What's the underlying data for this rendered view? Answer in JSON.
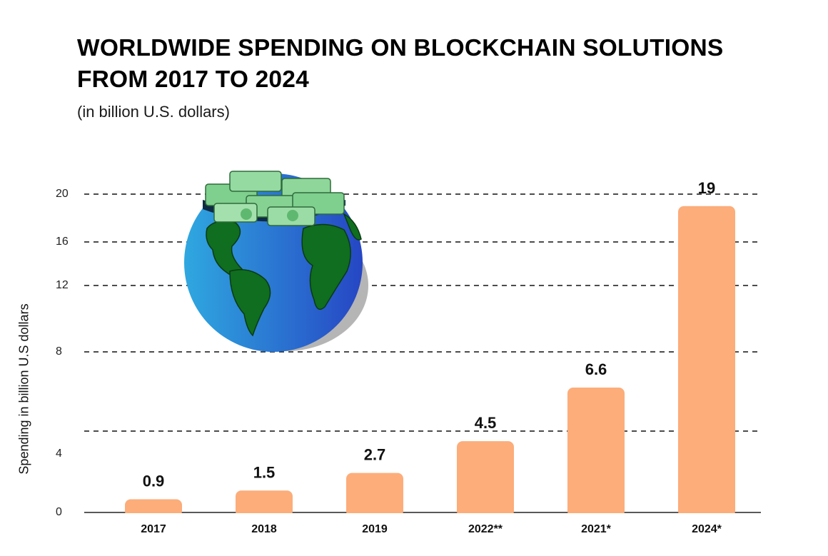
{
  "title": "WORLDWIDE SPENDING ON BLOCKCHAIN SOLUTIONS FROM 2017 TO 2024",
  "subtitle": "(in billion U.S. dollars)",
  "chart_data": {
    "type": "bar",
    "categories": [
      "2017",
      "2018",
      "2019",
      "2022**",
      "2021*",
      "2024*"
    ],
    "values": [
      0.9,
      1.5,
      2.7,
      4.5,
      6.6,
      19
    ],
    "data_labels": [
      "0.9",
      "1.5",
      "2.7",
      "4.5",
      "6.6",
      "19"
    ],
    "ylabel": "Spending in billion U.S dollars",
    "yticks": [
      "0",
      "4",
      "8",
      "12",
      "16",
      "20"
    ],
    "grid": "dashed horizontal",
    "bar_color": "#fcad7a",
    "illustration": "globe-with-money-icon"
  }
}
